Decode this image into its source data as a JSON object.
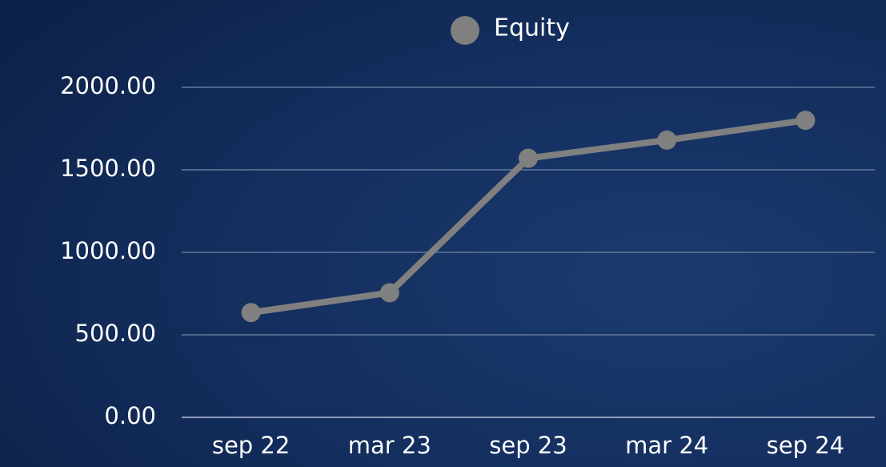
{
  "chart_data": {
    "type": "line",
    "categories": [
      "sep 22",
      "mar 23",
      "sep 23",
      "mar 24",
      "sep 24"
    ],
    "series": [
      {
        "name": "Equity",
        "color": "#808080",
        "values": [
          635,
          755,
          1570,
          1680,
          1800
        ]
      }
    ],
    "ylim": [
      0,
      2000
    ],
    "yticks": [
      {
        "value": 0,
        "label": "0.00"
      },
      {
        "value": 500,
        "label": "500.00"
      },
      {
        "value": 1000,
        "label": "1000.00"
      },
      {
        "value": 1500,
        "label": "1500.00"
      },
      {
        "value": 2000,
        "label": "2000.00"
      }
    ],
    "grid": true,
    "legend": "top"
  }
}
